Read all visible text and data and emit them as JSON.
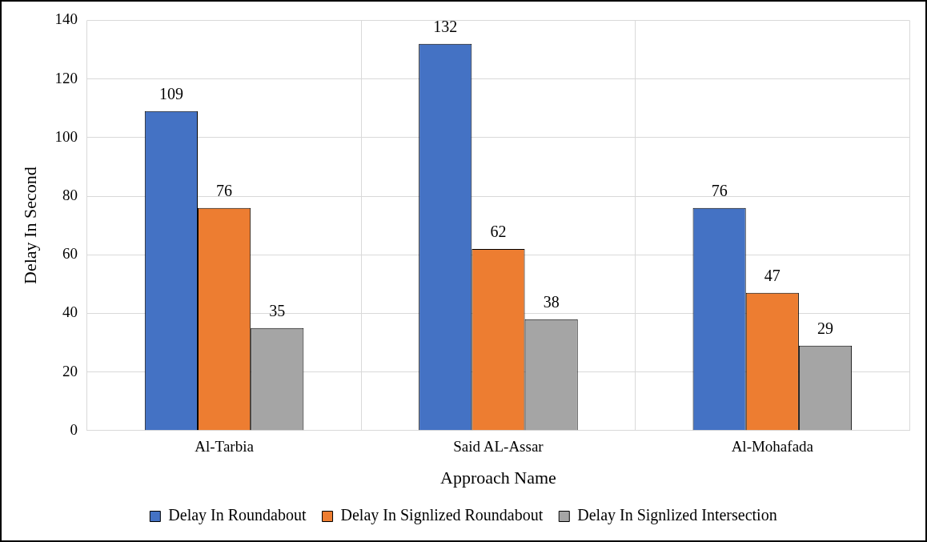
{
  "chart_data": {
    "type": "bar",
    "xlabel": "Approach Name",
    "ylabel": "Delay In Second",
    "categories": [
      "Al-Tarbia",
      "Said AL-Assar",
      "Al-Mohafada"
    ],
    "series": [
      {
        "name": "Delay In Roundabout",
        "color": "#4472c4",
        "values": [
          109,
          132,
          76
        ]
      },
      {
        "name": "Delay In Signlized Roundabout",
        "color": "#ed7d31",
        "values": [
          76,
          62,
          47
        ]
      },
      {
        "name": "Delay In Signlized Intersection",
        "color": "#a5a5a5",
        "values": [
          35,
          38,
          29
        ]
      }
    ],
    "ylim": [
      0,
      140
    ],
    "yticks": [
      0,
      20,
      40,
      60,
      80,
      100,
      120,
      140
    ],
    "grid": true,
    "legend": "bottom",
    "data_labels": true
  }
}
